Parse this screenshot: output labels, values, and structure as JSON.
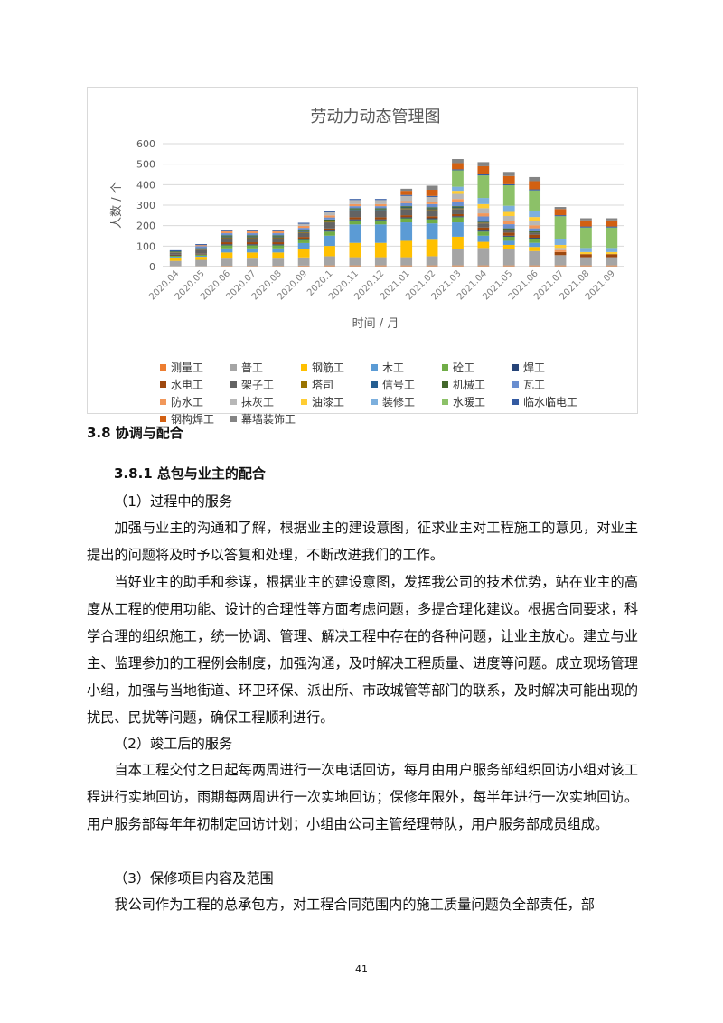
{
  "chart_data": {
    "type": "bar",
    "stacked": true,
    "title": "劳动力动态管理图",
    "xlabel": "时间 / 月",
    "ylabel": "人数 / 个",
    "ylim": [
      0,
      600
    ],
    "yticks": [
      0,
      100,
      200,
      300,
      400,
      500,
      600
    ],
    "grid": true,
    "legend_position": "bottom",
    "categories": [
      "2020.04",
      "2020.05",
      "2020.06",
      "2020.07",
      "2020.08",
      "2020.09",
      "2020.1",
      "2020.11",
      "2020.12",
      "2021.01",
      "2021.02",
      "2021.03",
      "2021.04",
      "2021.05",
      "2021.06",
      "2021.07",
      "2021.08",
      "2021.09"
    ],
    "series": [
      {
        "name": "测量工",
        "color": "#ed7d31",
        "values": [
          3,
          3,
          4,
          4,
          4,
          5,
          6,
          6,
          6,
          6,
          6,
          6,
          6,
          6,
          6,
          6,
          6,
          6
        ]
      },
      {
        "name": "普工",
        "color": "#a5a5a5",
        "values": [
          25,
          30,
          35,
          35,
          35,
          40,
          45,
          40,
          40,
          40,
          45,
          80,
          85,
          80,
          70,
          50,
          40,
          40
        ]
      },
      {
        "name": "钢筋工",
        "color": "#ffc000",
        "values": [
          15,
          15,
          30,
          30,
          30,
          40,
          50,
          70,
          70,
          80,
          80,
          60,
          30,
          20,
          20,
          0,
          0,
          0
        ]
      },
      {
        "name": "木工",
        "color": "#5b9bd5",
        "values": [
          5,
          5,
          20,
          20,
          20,
          30,
          50,
          90,
          90,
          90,
          80,
          70,
          30,
          20,
          20,
          0,
          0,
          0
        ]
      },
      {
        "name": "砼工",
        "color": "#70ad47",
        "values": [
          5,
          5,
          15,
          15,
          15,
          15,
          20,
          20,
          20,
          20,
          20,
          25,
          20,
          20,
          20,
          0,
          0,
          0
        ]
      },
      {
        "name": "焊工",
        "color": "#264478",
        "values": [
          2,
          2,
          5,
          5,
          5,
          5,
          5,
          5,
          5,
          5,
          5,
          5,
          5,
          5,
          5,
          0,
          0,
          0
        ]
      },
      {
        "name": "水电工",
        "color": "#9e480e",
        "values": [
          3,
          3,
          10,
          10,
          10,
          10,
          10,
          10,
          10,
          10,
          10,
          10,
          15,
          15,
          15,
          15,
          15,
          15
        ]
      },
      {
        "name": "架子工",
        "color": "#636363",
        "values": [
          10,
          20,
          20,
          20,
          20,
          20,
          30,
          30,
          30,
          30,
          30,
          25,
          20,
          15,
          10,
          0,
          0,
          0
        ]
      },
      {
        "name": "塔司",
        "color": "#997300",
        "values": [
          2,
          2,
          4,
          4,
          4,
          4,
          4,
          4,
          4,
          4,
          4,
          4,
          4,
          0,
          0,
          0,
          0,
          0
        ]
      },
      {
        "name": "信号工",
        "color": "#255e91",
        "values": [
          2,
          2,
          4,
          4,
          4,
          4,
          4,
          4,
          4,
          4,
          4,
          4,
          4,
          0,
          0,
          0,
          0,
          0
        ]
      },
      {
        "name": "机械工",
        "color": "#43682b",
        "values": [
          3,
          3,
          6,
          6,
          6,
          6,
          6,
          6,
          6,
          6,
          6,
          6,
          6,
          6,
          6,
          0,
          0,
          0
        ]
      },
      {
        "name": "瓦工",
        "color": "#698ed0",
        "values": [
          0,
          10,
          10,
          10,
          10,
          10,
          10,
          10,
          10,
          15,
          15,
          20,
          20,
          20,
          15,
          0,
          0,
          0
        ]
      },
      {
        "name": "防水工",
        "color": "#f1975a",
        "values": [
          0,
          5,
          10,
          10,
          10,
          10,
          10,
          10,
          10,
          10,
          10,
          15,
          15,
          15,
          15,
          10,
          0,
          0
        ]
      },
      {
        "name": "抹灰工",
        "color": "#b7b7b7",
        "values": [
          0,
          0,
          0,
          0,
          0,
          10,
          15,
          20,
          20,
          25,
          25,
          25,
          25,
          25,
          20,
          10,
          0,
          0
        ]
      },
      {
        "name": "油漆工",
        "color": "#ffcd33",
        "values": [
          0,
          0,
          0,
          0,
          0,
          0,
          0,
          0,
          0,
          0,
          0,
          15,
          20,
          20,
          20,
          15,
          10,
          10
        ]
      },
      {
        "name": "装修工",
        "color": "#7cafdd",
        "values": [
          0,
          0,
          0,
          0,
          0,
          0,
          0,
          0,
          0,
          0,
          0,
          20,
          30,
          30,
          30,
          30,
          20,
          20
        ]
      },
      {
        "name": "水暖工",
        "color": "#8cc168",
        "values": [
          0,
          0,
          0,
          0,
          0,
          0,
          0,
          0,
          0,
          0,
          0,
          80,
          110,
          100,
          100,
          110,
          100,
          100
        ]
      },
      {
        "name": "临水临电工",
        "color": "#335aa1",
        "values": [
          5,
          5,
          5,
          5,
          5,
          5,
          5,
          5,
          5,
          5,
          5,
          5,
          5,
          5,
          5,
          5,
          5,
          5
        ]
      },
      {
        "name": "钢构焊工",
        "color": "#d26012",
        "values": [
          0,
          0,
          0,
          0,
          0,
          0,
          0,
          0,
          0,
          20,
          30,
          30,
          40,
          40,
          40,
          30,
          30,
          30
        ]
      },
      {
        "name": "幕墙装饰工",
        "color": "#848484",
        "values": [
          0,
          0,
          0,
          0,
          0,
          0,
          0,
          0,
          0,
          10,
          20,
          20,
          20,
          20,
          20,
          10,
          10,
          10
        ]
      }
    ]
  },
  "heading_3_8": "3.8 协调与配合",
  "heading_3_8_1": "3.8.1 总包与业主的配合",
  "sub1": "（1）过程中的服务",
  "para1": "加强与业主的沟通和了解，根据业主的建设意图，征求业主对工程施工的意见，对业主提出的问题将及时予以答复和处理，不断改进我们的工作。",
  "para2": "当好业主的助手和参谋，根据业主的建设意图，发挥我公司的技术优势，站在业主的高度从工程的使用功能、设计的合理性等方面考虑问题，多提合理化建议。根据合同要求，科学合理的组织施工，统一协调、管理、解决工程中存在的各种问题，让业主放心。建立与业主、监理参加的工程例会制度，加强沟通，及时解决工程质量、进度等问题。成立现场管理小组，加强与当地街道、环卫环保、派出所、市政城管等部门的联系，及时解决可能出现的扰民、民扰等问题，确保工程顺利进行。",
  "sub2": "（2）竣工后的服务",
  "para3": "自本工程交付之日起每两周进行一次电话回访，每月由用户服务部组织回访小组对该工程进行实地回访，雨期每两周进行一次实地回访；保修年限外，每半年进行一次实地回访。用户服务部每年年初制定回访计划；小组由公司主管经理带队，用户服务部成员组成。",
  "sub3": "（3）保修项目内容及范围",
  "para4": "我公司作为工程的总承包方，对工程合同范围内的施工质量问题负全部责任，部",
  "page_number": "41"
}
